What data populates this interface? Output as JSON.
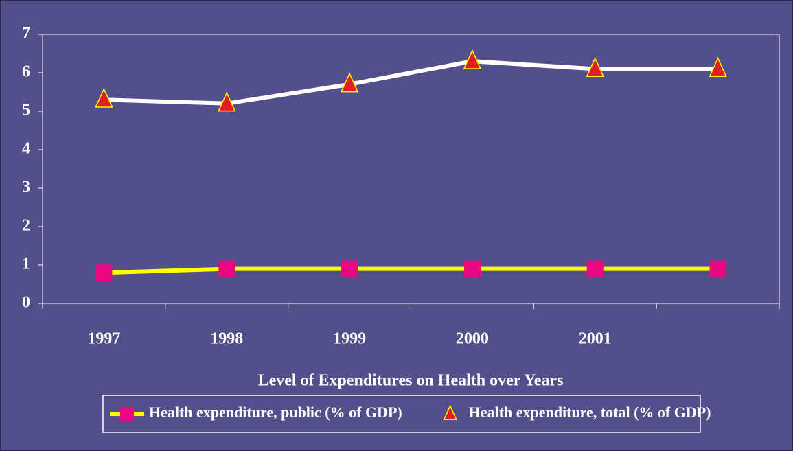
{
  "chart_data": {
    "type": "line",
    "xlabel": "Level of Expenditures on Health over Years",
    "categories": [
      "1997",
      "1998",
      "1999",
      "2000",
      "2001",
      null
    ],
    "series": [
      {
        "name": "Health expenditure, public (% of GDP)",
        "color": "#ffff00",
        "marker_color": "#e6097f",
        "marker": "square",
        "values": [
          0.8,
          0.9,
          0.9,
          0.9,
          0.9,
          0.9
        ]
      },
      {
        "name": "Health expenditure, total (% of GDP)",
        "color": "#ffffff",
        "marker_color": "#e01e24",
        "marker": "triangle",
        "values": [
          5.3,
          5.2,
          5.7,
          6.3,
          6.1,
          6.1
        ]
      }
    ],
    "ylim": [
      0,
      7
    ],
    "yticks": [
      0,
      1,
      2,
      3,
      4,
      5,
      6,
      7
    ],
    "grid": false,
    "legend": "bottom"
  }
}
